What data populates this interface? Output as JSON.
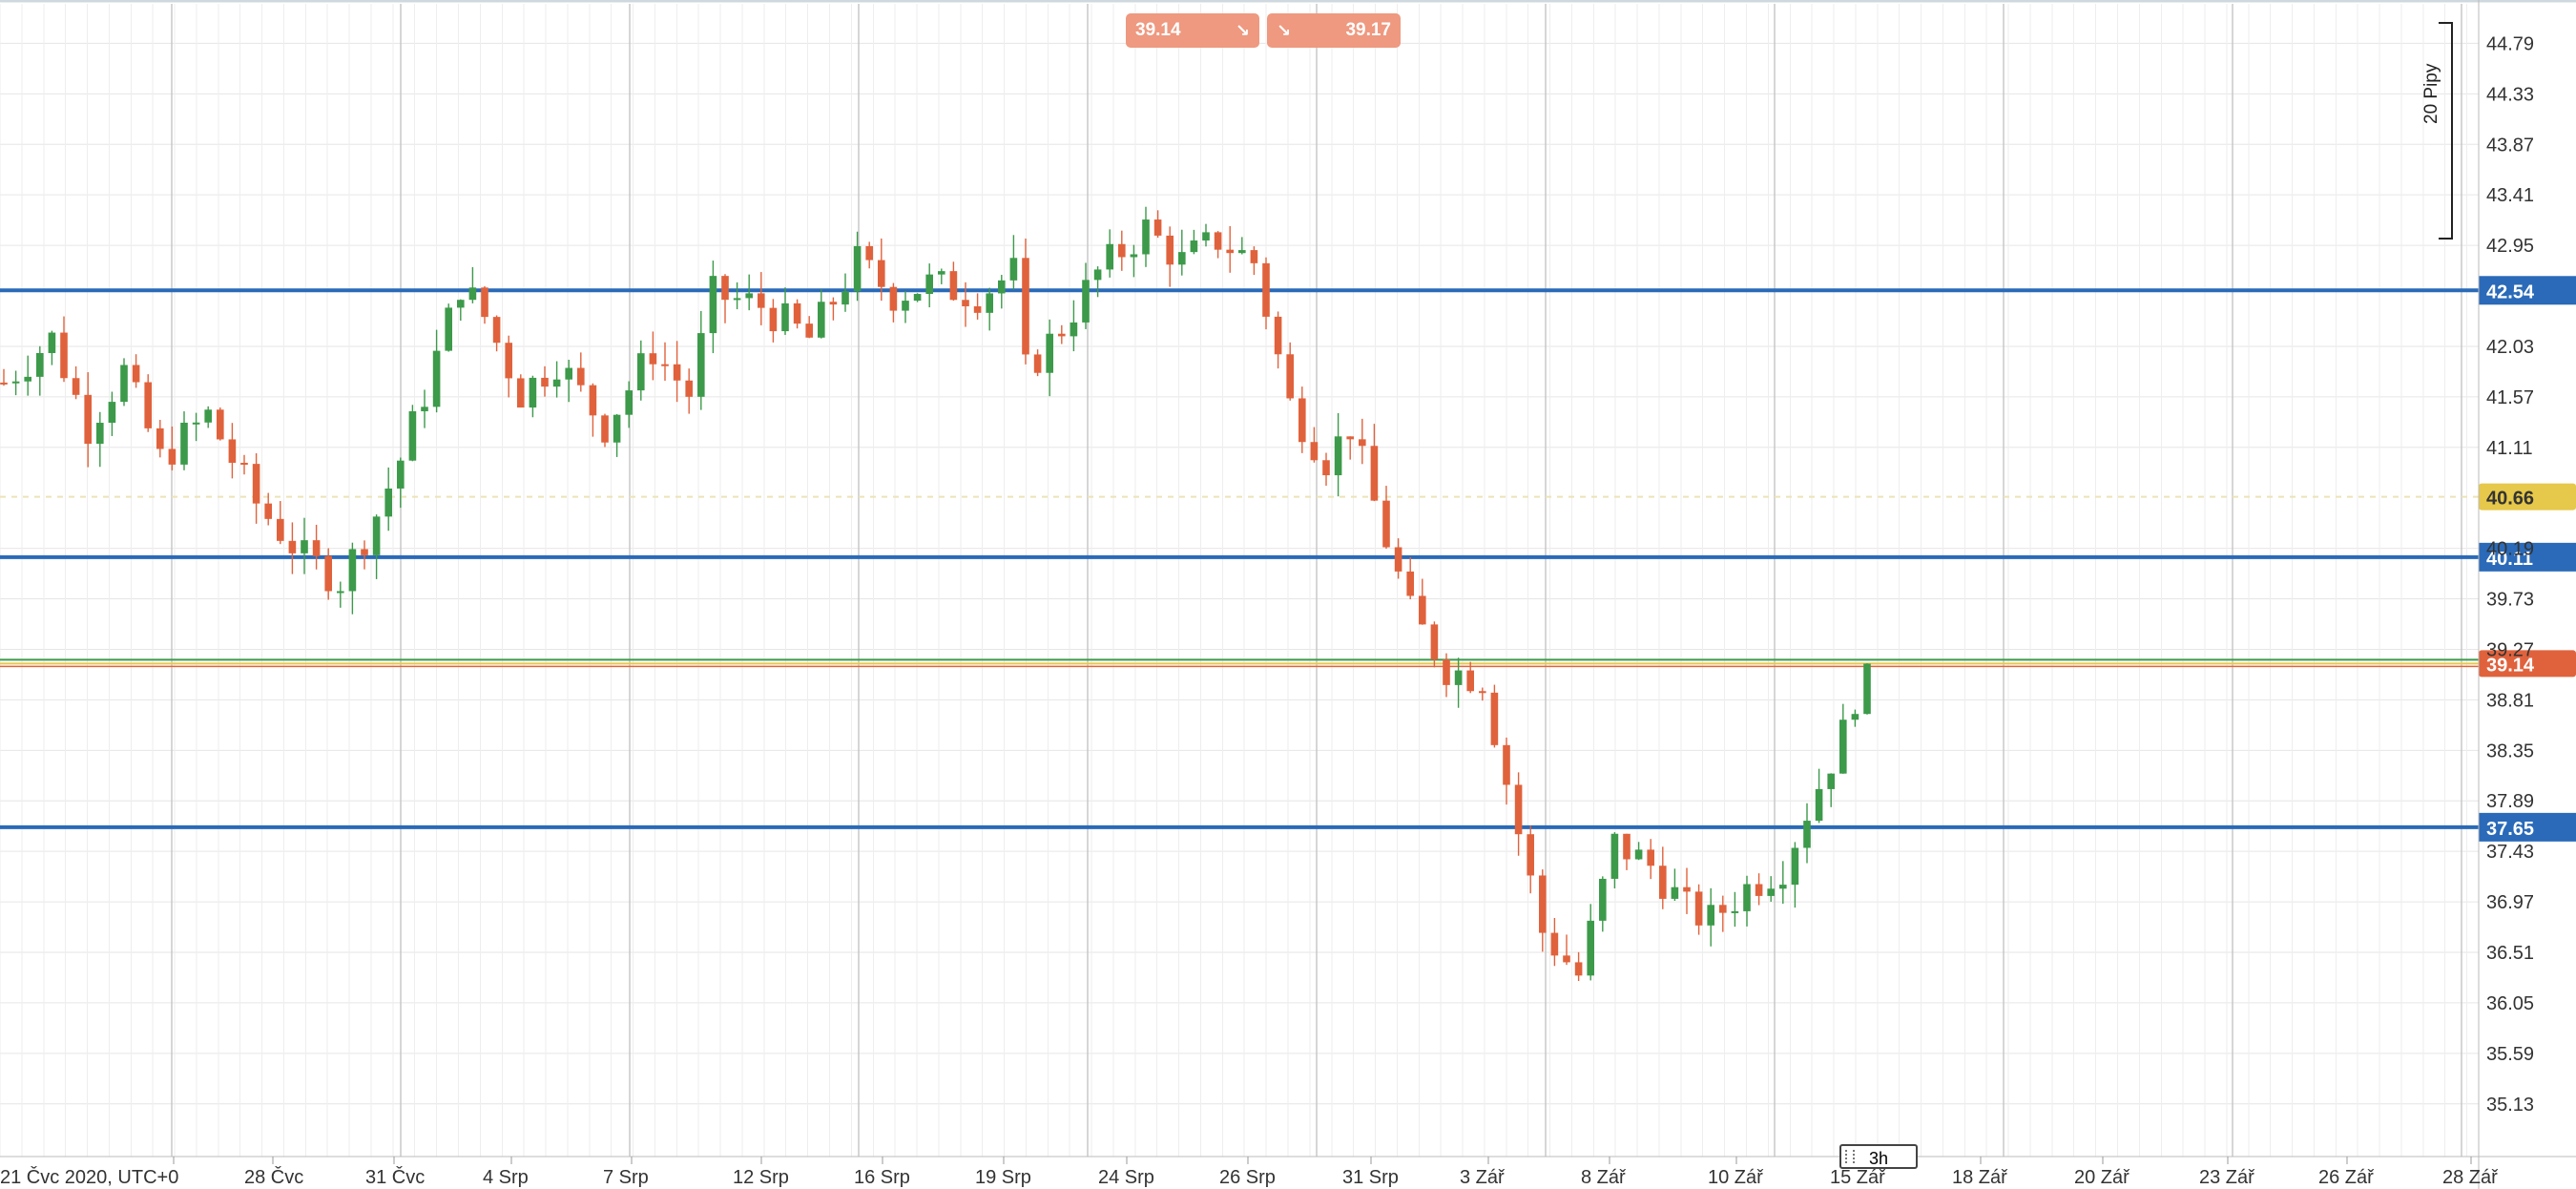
{
  "quote": {
    "bid": "39.14",
    "ask": "39.17",
    "bid_arrow_icon": "arrow-down-right-icon",
    "ask_arrow_icon": "arrow-down-right-icon"
  },
  "ruler": {
    "label": "20 Pipy"
  },
  "timeframe": {
    "label": "3h"
  },
  "colors": {
    "bull": "#3c9a4a",
    "bear": "#e0623c",
    "hline": "#2a6ab8",
    "last_price_tag": "#e0623c",
    "yellow_tag": "#e6c84a",
    "quote_box": "#ee9980",
    "grid": "#e6e6e6"
  },
  "chart_data": {
    "type": "candlestick",
    "x_labels": [
      "21 Čvc 2020, UTC+0",
      "28 Čvc",
      "31 Čvc",
      "4 Srp",
      "7 Srp",
      "12 Srp",
      "16 Srp",
      "19 Srp",
      "24 Srp",
      "26 Srp",
      "31 Srp",
      "3 Zář",
      "8 Zář",
      "10 Zář",
      "15 Zář",
      "18 Zář",
      "20 Zář",
      "23 Zář",
      "26 Zář",
      "28 Zář"
    ],
    "y_ticks": [
      44.79,
      44.33,
      43.87,
      43.41,
      42.95,
      42.03,
      41.57,
      41.11,
      40.19,
      39.73,
      39.27,
      38.81,
      38.35,
      37.89,
      37.43,
      36.97,
      36.51,
      36.05,
      35.59,
      35.13
    ],
    "y_range": [
      34.65,
      45.15
    ],
    "horizontal_lines": [
      {
        "price": 42.54,
        "label": "42.54",
        "color": "#2a6ab8"
      },
      {
        "price": 40.11,
        "label": "40.11",
        "color": "#2a6ab8"
      },
      {
        "price": 37.65,
        "label": "37.65",
        "color": "#2a6ab8"
      }
    ],
    "price_tags": [
      {
        "price": 40.66,
        "label": "40.66",
        "color": "#e6c84a"
      },
      {
        "price": 39.14,
        "label": "39.14",
        "color": "#e0623c"
      }
    ],
    "candle_path": [
      [
        0,
        41.7
      ],
      [
        4,
        42.1
      ],
      [
        7,
        41.3
      ],
      [
        10,
        41.8
      ],
      [
        13,
        41.0
      ],
      [
        17,
        41.4
      ],
      [
        21,
        40.6
      ],
      [
        25,
        40.1
      ],
      [
        28,
        39.9
      ],
      [
        31,
        40.5
      ],
      [
        33,
        41.0
      ],
      [
        35,
        41.6
      ],
      [
        38,
        42.6
      ],
      [
        40,
        42.3
      ],
      [
        43,
        41.6
      ],
      [
        46,
        41.9
      ],
      [
        50,
        41.3
      ],
      [
        54,
        42.0
      ],
      [
        57,
        41.6
      ],
      [
        59,
        42.5
      ],
      [
        63,
        42.4
      ],
      [
        67,
        42.1
      ],
      [
        71,
        42.8
      ],
      [
        74,
        42.5
      ],
      [
        77,
        42.6
      ],
      [
        81,
        42.5
      ],
      [
        84,
        42.7
      ],
      [
        85,
        41.8
      ],
      [
        88,
        42.2
      ],
      [
        91,
        42.7
      ],
      [
        95,
        43.1
      ],
      [
        98,
        42.8
      ],
      [
        101,
        43.0
      ],
      [
        104,
        42.8
      ],
      [
        107,
        41.5
      ],
      [
        110,
        41.0
      ],
      [
        112,
        41.3
      ],
      [
        114,
        40.6
      ],
      [
        117,
        39.6
      ],
      [
        120,
        39.1
      ],
      [
        123,
        39.0
      ],
      [
        126,
        37.6
      ],
      [
        128,
        36.7
      ],
      [
        131,
        36.3
      ],
      [
        134,
        37.5
      ],
      [
        137,
        37.3
      ],
      [
        140,
        36.9
      ],
      [
        142,
        36.8
      ],
      [
        145,
        37.1
      ],
      [
        148,
        37.3
      ],
      [
        150,
        37.8
      ],
      [
        153,
        38.5
      ],
      [
        155,
        39.2
      ]
    ]
  }
}
